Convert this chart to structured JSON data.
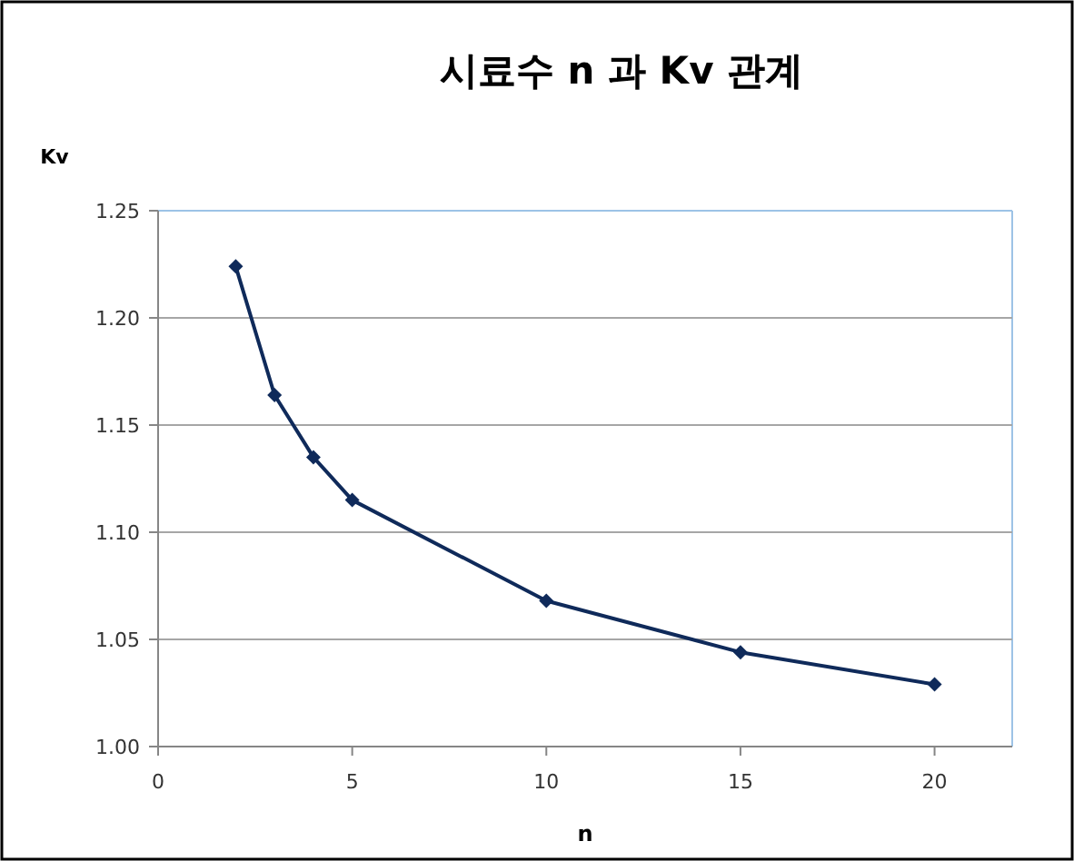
{
  "chart_data": {
    "type": "line",
    "title": "시료수 n 과 Kv 관계",
    "xlabel": "n",
    "ylabel": "Kv",
    "x": [
      2,
      3,
      4,
      5,
      10,
      15,
      20
    ],
    "series": [
      {
        "color": "#0f2a5a",
        "values": [
          1.224,
          1.164,
          1.135,
          1.115,
          1.068,
          1.044,
          1.029
        ]
      }
    ],
    "xlim": [
      0,
      22
    ],
    "xticks": [
      0,
      5,
      10,
      15,
      20
    ],
    "ylim": [
      1.0,
      1.25
    ],
    "yticks": [
      {
        "value": 1.0,
        "label": "1.00"
      },
      {
        "value": 1.05,
        "label": "1.05"
      },
      {
        "value": 1.1,
        "label": "1.10"
      },
      {
        "value": 1.15,
        "label": "1.15"
      },
      {
        "value": 1.2,
        "label": "1.20"
      },
      {
        "value": 1.25,
        "label": "1.25"
      }
    ],
    "grid": "y",
    "marker": "diamond",
    "line_style": "solid"
  }
}
